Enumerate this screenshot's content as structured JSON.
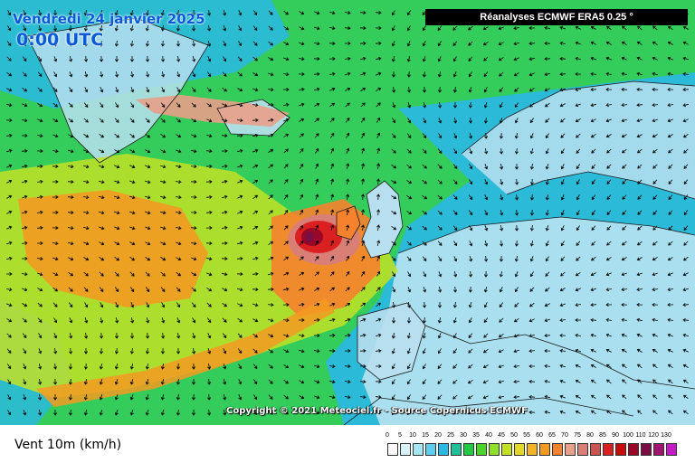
{
  "map": {
    "date_label": "Vendredi 24 janvier 2025",
    "time_label": "0:00 UTC",
    "source_label": "Réanalyses ECMWF ERA5 0.25 °",
    "copyright_label": "Copyright © 2021 Meteociel.fr - Source Copernicus ECMWF",
    "field_label": "Vent 10m (km/h)"
  },
  "legend": {
    "levels": [
      "0",
      "5",
      "10",
      "15",
      "20",
      "25",
      "30",
      "35",
      "40",
      "45",
      "50",
      "55",
      "60",
      "65",
      "70",
      "75",
      "80",
      "85",
      "90",
      "100",
      "110",
      "120",
      "130"
    ],
    "colors": [
      "#ffffff",
      "#d8f4fa",
      "#a6e6f4",
      "#5ecdee",
      "#2ab8e6",
      "#22c098",
      "#22c846",
      "#4ad42a",
      "#8ee028",
      "#c2e026",
      "#e4d826",
      "#f2b424",
      "#f49a22",
      "#f7822e",
      "#e8a08a",
      "#da7f76",
      "#cc5450",
      "#da2020",
      "#c80c0c",
      "#9a0628",
      "#780e44",
      "#a01470",
      "#c41cc4"
    ]
  },
  "colors": {
    "land": "#b8dff0",
    "sea_calm": "#5ecdee",
    "sea_moderate": "#4ad42a",
    "sea_strong": "#f49a22",
    "storm_core": "#9a0628",
    "coastline": "#1a1a1a",
    "arrow": "#000000"
  },
  "features": {
    "storm": "storm-core-icon"
  }
}
